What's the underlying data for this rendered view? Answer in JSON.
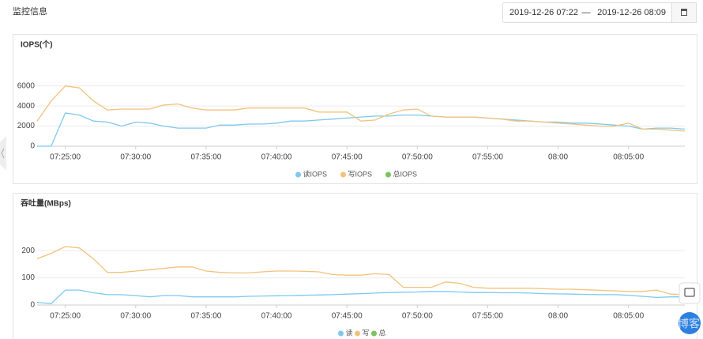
{
  "header": {
    "title": "监控信息",
    "date_range": {
      "start": "2019-12-26 07:22",
      "separator": "—",
      "end": "2019-12-26 08:09"
    }
  },
  "chart_data": [
    {
      "type": "line",
      "title": "IOPS(个)",
      "x": [
        "07:23:00",
        "07:24:00",
        "07:25:00",
        "07:26:00",
        "07:27:00",
        "07:28:00",
        "07:29:00",
        "07:30:00",
        "07:31:00",
        "07:32:00",
        "07:33:00",
        "07:34:00",
        "07:35:00",
        "07:36:00",
        "07:37:00",
        "07:38:00",
        "07:39:00",
        "07:40:00",
        "07:41:00",
        "07:42:00",
        "07:43:00",
        "07:44:00",
        "07:45:00",
        "07:46:00",
        "07:47:00",
        "07:48:00",
        "07:49:00",
        "07:50:00",
        "07:51:00",
        "07:52:00",
        "07:53:00",
        "07:54:00",
        "07:55:00",
        "07:56:00",
        "07:57:00",
        "07:58:00",
        "07:59:00",
        "08:00:00",
        "08:01:00",
        "08:02:00",
        "08:03:00",
        "08:04:00",
        "08:05:00",
        "08:06:00",
        "08:07:00",
        "08:08:00",
        "08:09:00"
      ],
      "xticks": [
        "07:25:00",
        "07:30:00",
        "07:35:00",
        "07:40:00",
        "07:45:00",
        "07:50:00",
        "07:55:00",
        {
          "value": "08:00:00",
          "label": "08:00"
        },
        "08:05:00"
      ],
      "ylim": [
        0,
        7000
      ],
      "yticks": [
        0,
        2000,
        4000,
        6000
      ],
      "grid": true,
      "series": [
        {
          "name": "读IOPS",
          "color": "#7ec8ef",
          "values": [
            0,
            0,
            3300,
            3100,
            2500,
            2400,
            2000,
            2400,
            2300,
            2000,
            1800,
            1800,
            1800,
            2100,
            2100,
            2200,
            2200,
            2300,
            2500,
            2500,
            2600,
            2700,
            2800,
            2900,
            3000,
            3000,
            3100,
            3100,
            3000,
            2900,
            2900,
            2900,
            2800,
            2700,
            2600,
            2500,
            2400,
            2400,
            2300,
            2300,
            2200,
            2100,
            2000,
            1700,
            1800,
            1800,
            1700
          ]
        },
        {
          "name": "写IOPS",
          "color": "#f2c27a",
          "values": [
            2500,
            4500,
            6000,
            5800,
            4500,
            3600,
            3700,
            3700,
            3700,
            4100,
            4200,
            3800,
            3600,
            3600,
            3600,
            3800,
            3800,
            3800,
            3800,
            3800,
            3400,
            3400,
            3400,
            2500,
            2600,
            3200,
            3600,
            3700,
            3000,
            2900,
            2900,
            2900,
            2800,
            2700,
            2500,
            2500,
            2400,
            2300,
            2200,
            2100,
            2000,
            2000,
            2300,
            1700,
            1700,
            1600,
            1500
          ]
        },
        {
          "name": "总IOPS",
          "color": "#7cc35b",
          "values": [
            null,
            null,
            null,
            null,
            null,
            null,
            null,
            null,
            null,
            null,
            null,
            null,
            null,
            null,
            null,
            null,
            null,
            null,
            null,
            null,
            null,
            null,
            null,
            null,
            null,
            null,
            null,
            null,
            null,
            null,
            null,
            null,
            null,
            null,
            null,
            null,
            null,
            null,
            null,
            null,
            null,
            null,
            null,
            null,
            null,
            null,
            null
          ]
        }
      ]
    },
    {
      "type": "line",
      "title": "吞吐量(MBps)",
      "x": [
        "07:23:00",
        "07:24:00",
        "07:25:00",
        "07:26:00",
        "07:27:00",
        "07:28:00",
        "07:29:00",
        "07:30:00",
        "07:31:00",
        "07:32:00",
        "07:33:00",
        "07:34:00",
        "07:35:00",
        "07:36:00",
        "07:37:00",
        "07:38:00",
        "07:39:00",
        "07:40:00",
        "07:41:00",
        "07:42:00",
        "07:43:00",
        "07:44:00",
        "07:45:00",
        "07:46:00",
        "07:47:00",
        "07:48:00",
        "07:49:00",
        "07:50:00",
        "07:51:00",
        "07:52:00",
        "07:53:00",
        "07:54:00",
        "07:55:00",
        "07:56:00",
        "07:57:00",
        "07:58:00",
        "07:59:00",
        "08:00:00",
        "08:01:00",
        "08:02:00",
        "08:03:00",
        "08:04:00",
        "08:05:00",
        "08:06:00",
        "08:07:00",
        "08:08:00",
        "08:09:00"
      ],
      "xticks": [
        "07:25:00",
        "07:30:00",
        "07:35:00",
        "07:40:00",
        "07:45:00",
        "07:50:00",
        "07:55:00",
        {
          "value": "08:00:00",
          "label": "08:00"
        },
        "08:05:00"
      ],
      "ylim": [
        0,
        250
      ],
      "yticks": [
        0,
        100,
        200
      ],
      "grid": true,
      "series": [
        {
          "name": "读",
          "color": "#7ec8ef",
          "values": [
            10,
            5,
            55,
            55,
            45,
            38,
            38,
            35,
            30,
            35,
            35,
            30,
            30,
            30,
            30,
            32,
            33,
            34,
            35,
            36,
            37,
            38,
            40,
            42,
            44,
            46,
            47,
            48,
            50,
            50,
            48,
            46,
            46,
            45,
            45,
            44,
            42,
            41,
            40,
            39,
            38,
            38,
            36,
            32,
            28,
            30,
            30
          ]
        },
        {
          "name": "写",
          "color": "#f2c27a",
          "values": [
            170,
            190,
            215,
            210,
            170,
            120,
            120,
            125,
            130,
            135,
            140,
            140,
            125,
            120,
            118,
            118,
            122,
            125,
            125,
            124,
            122,
            112,
            110,
            110,
            115,
            112,
            65,
            65,
            65,
            85,
            80,
            65,
            62,
            62,
            62,
            62,
            60,
            58,
            58,
            56,
            54,
            52,
            50,
            50,
            55,
            40,
            38
          ]
        },
        {
          "name": "总",
          "color": "#7cc35b",
          "values": [
            null,
            null,
            null,
            null,
            null,
            null,
            null,
            null,
            null,
            null,
            null,
            null,
            null,
            null,
            null,
            null,
            null,
            null,
            null,
            null,
            null,
            null,
            null,
            null,
            null,
            null,
            null,
            null,
            null,
            null,
            null,
            null,
            null,
            null,
            null,
            null,
            null,
            null,
            null,
            null,
            null,
            null,
            null,
            null,
            null,
            null,
            null
          ]
        }
      ]
    }
  ],
  "watermark": "@ITPUB博客"
}
